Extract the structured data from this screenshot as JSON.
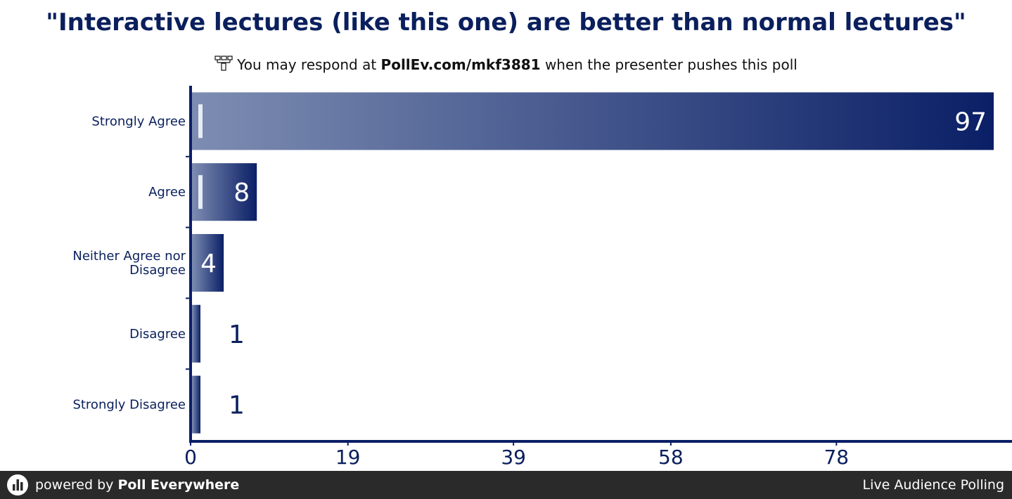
{
  "header": {
    "title": "\"Interactive lectures (like this one) are better than normal lectures\"",
    "subtitle_prefix": "You may respond at",
    "subtitle_code": "PollEv.com/mkf3881",
    "subtitle_suffix": "when the presenter pushes this poll",
    "subtitle_icon": "text-message-icon"
  },
  "chart_data": {
    "type": "bar",
    "orientation": "horizontal",
    "categories": [
      "Strongly Agree",
      "Agree",
      "Neither Agree nor Disagree",
      "Disagree",
      "Strongly Disagree"
    ],
    "values": [
      97,
      8,
      4,
      1,
      1
    ],
    "xticks": [
      "0",
      "19",
      "39",
      "58",
      "78"
    ],
    "xlim": [
      0,
      97
    ],
    "grid": false,
    "legend": "none",
    "colors": {
      "bar_start": "#7d8db2",
      "bar_end": "#0a1f66",
      "axis": "#0a1f66",
      "text": "#0a1f5c"
    }
  },
  "footer": {
    "powered_prefix": "powered by",
    "brand": "Poll Everywhere",
    "tagline": "Live Audience Polling"
  }
}
